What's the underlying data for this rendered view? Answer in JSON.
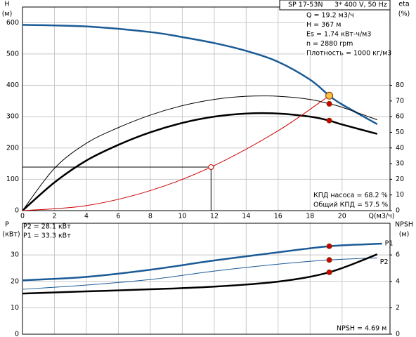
{
  "chart_data": [
    {
      "type": "line",
      "title": "SP 17-53N",
      "subtitle": "3* 400 V, 50 Hz",
      "info": [
        "Q = 19.2 м3/ч",
        "H = 367 м",
        "Es = 1.74 кВт-ч/м3",
        "n = 2880 rpm",
        "Плотность = 1000 кг/м3"
      ],
      "notes": [
        "КПД насоса = 68.2 %",
        "Общий КПД = 57.5 %"
      ],
      "x_label": "Q(м3/ч)",
      "y_label": "H",
      "y_unit": "(м)",
      "y2_label": "eta",
      "y2_unit": "(%)",
      "xlim": [
        0,
        23
      ],
      "xticks": [
        0,
        2,
        4,
        6,
        8,
        10,
        12,
        14,
        16,
        18,
        20
      ],
      "ylim": [
        0,
        650
      ],
      "yticks": [
        0,
        100,
        200,
        300,
        400,
        500,
        600
      ],
      "y2lim": [
        0,
        130
      ],
      "y2ticks": [
        0,
        10,
        20,
        30,
        40,
        50,
        60,
        70,
        80
      ],
      "grid": true,
      "series": [
        {
          "color": "#1a5a96",
          "line_width": 2.5,
          "axis": "y",
          "x": [
            0,
            4,
            8,
            10,
            12,
            14,
            16,
            18,
            19.2,
            20,
            22.2
          ],
          "values": [
            593,
            588,
            570,
            554,
            535,
            510,
            475,
            418,
            367,
            339,
            276
          ]
        },
        {
          "color": "#000000",
          "line_width": 1,
          "axis": "y2",
          "x": [
            0,
            2,
            4,
            6,
            8,
            10,
            12,
            14,
            16,
            18,
            19.2,
            20,
            22.2
          ],
          "values": [
            0,
            27,
            43,
            53,
            61,
            67,
            71,
            73,
            73,
            71,
            68.2,
            66,
            58
          ]
        },
        {
          "color": "#000000",
          "line_width": 2.5,
          "axis": "y2",
          "x": [
            0,
            2,
            4,
            6,
            8,
            10,
            12,
            14,
            16,
            18,
            19.2,
            20,
            22.2
          ],
          "values": [
            0,
            18,
            32,
            42,
            50,
            56,
            60,
            62,
            62,
            60,
            57.5,
            55,
            49
          ]
        },
        {
          "color": "#cc0000",
          "line_width": 1,
          "axis": "y",
          "x": [
            0,
            4,
            8,
            11.8,
            16,
            19.2
          ],
          "values": [
            0,
            16,
            64,
            139,
            255,
            367
          ]
        }
      ],
      "points": [
        {
          "x": 19.2,
          "y": 367,
          "axis": "y",
          "color": "#f5c242",
          "radius": 5
        },
        {
          "x": 19.2,
          "y": 68.2,
          "axis": "y2",
          "color": "#cc0000",
          "radius": 3.5
        },
        {
          "x": 19.2,
          "y": 57.5,
          "axis": "y2",
          "color": "#cc0000",
          "radius": 3.5
        },
        {
          "x": 11.8,
          "y": 139,
          "axis": "y",
          "color": "#ffffff",
          "radius": 3.5,
          "guide": true
        }
      ]
    },
    {
      "type": "line",
      "info": [
        "P2 = 28.1 кВт",
        "P1 = 33.3 кВт"
      ],
      "notes": [
        "NPSH = 4.69 м"
      ],
      "y_label": "P",
      "y_unit": "(кВт)",
      "y2_label": "NPSH",
      "y2_unit": "(м)",
      "xlim": [
        0,
        23
      ],
      "xticks": [
        0,
        2,
        4,
        6,
        8,
        10,
        12,
        14,
        16,
        18,
        20
      ],
      "ylim": [
        0,
        42
      ],
      "yticks": [
        0,
        10,
        20,
        30
      ],
      "y2lim": [
        0,
        8.4
      ],
      "y2ticks": [
        0,
        2,
        4,
        6
      ],
      "grid": true,
      "series": [
        {
          "name": "P1",
          "color": "#1a5a96",
          "line_width": 2.5,
          "axis": "y",
          "x": [
            0,
            4,
            8,
            12,
            16,
            19.2,
            22.5
          ],
          "values": [
            20.4,
            21.7,
            24.4,
            27.9,
            31,
            33.3,
            34.3
          ]
        },
        {
          "name": "P2",
          "color": "#1a5a96",
          "line_width": 1,
          "axis": "y",
          "x": [
            0,
            4,
            8,
            12,
            16,
            19.2,
            22.2
          ],
          "values": [
            17,
            18.6,
            20.7,
            23.9,
            26.5,
            28.1,
            28.9
          ]
        },
        {
          "color": "#000000",
          "line_width": 2.5,
          "axis": "y2",
          "x": [
            0,
            4,
            8,
            12,
            16,
            19.2,
            22.2
          ],
          "values": [
            3.08,
            3.24,
            3.4,
            3.6,
            3.98,
            4.69,
            6.05
          ]
        }
      ],
      "points": [
        {
          "x": 19.2,
          "y": 33.3,
          "axis": "y",
          "color": "#cc0000",
          "radius": 3.5
        },
        {
          "x": 19.2,
          "y": 28.1,
          "axis": "y",
          "color": "#cc0000",
          "radius": 3.5
        },
        {
          "x": 19.2,
          "y": 4.69,
          "axis": "y2",
          "color": "#cc0000",
          "radius": 3.5
        }
      ]
    }
  ]
}
